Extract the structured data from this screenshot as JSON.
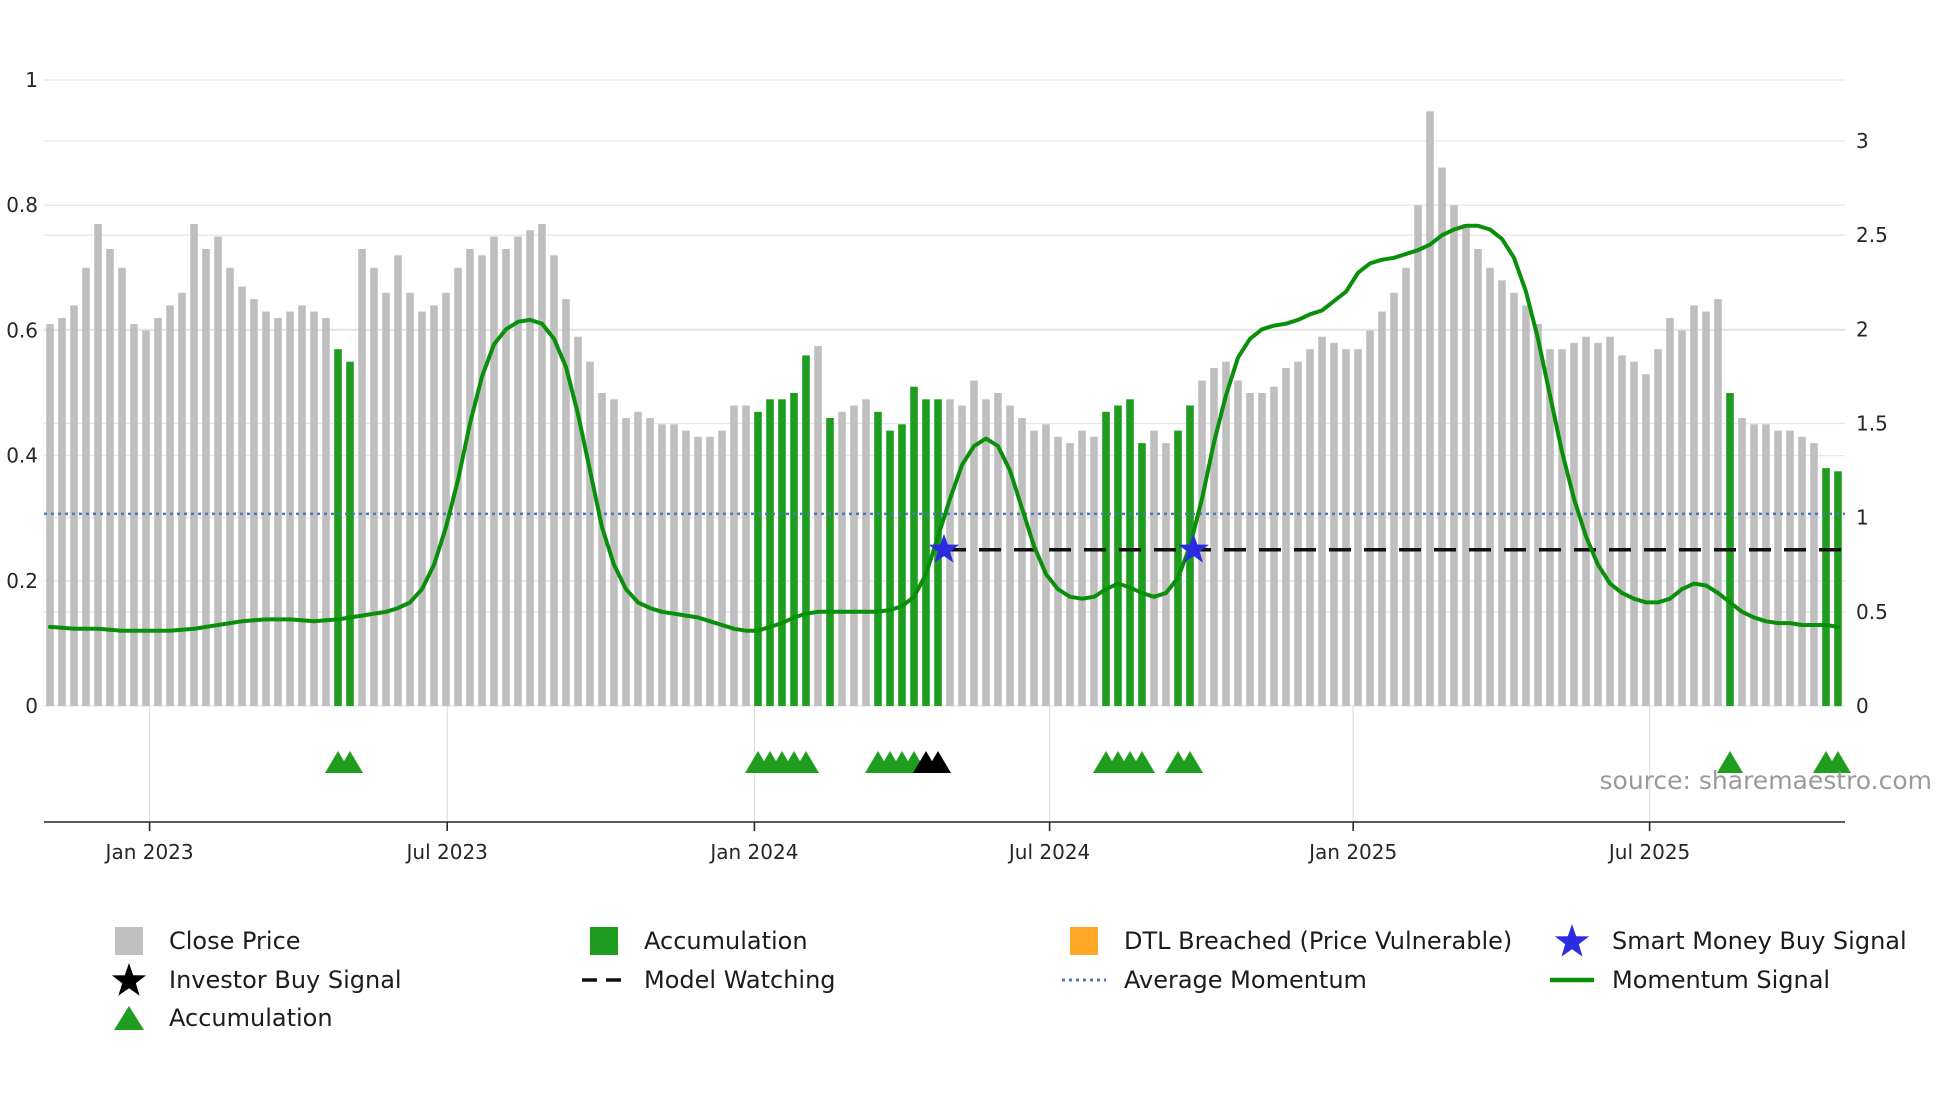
{
  "source_text": "source: sharemaestro.com",
  "colors": {
    "close_price": "#bfbfbf",
    "accumulation": "#1f9d1f",
    "momentum_signal": "#0a8f0a",
    "average_momentum": "#4e79b8",
    "model_watching": "#111111",
    "smart_money": "#2b2be0",
    "investor_buy": "#000000",
    "dtl_breached": "#ffa726",
    "axis_text": "#262626",
    "gridline": "#e7e7e7"
  },
  "chart_data": {
    "type": "bar",
    "title": "",
    "xlabel": "",
    "ylabel_left": "",
    "ylabel_right": "",
    "grid": true,
    "legend_position": "bottom",
    "x_ticks": [
      {
        "label": "Jan 2023",
        "index": 8.3
      },
      {
        "label": "Jul 2023",
        "index": 33.1
      },
      {
        "label": "Jan 2024",
        "index": 58.7
      },
      {
        "label": "Jul 2024",
        "index": 83.3
      },
      {
        "label": "Jan 2025",
        "index": 108.6
      },
      {
        "label": "Jul 2025",
        "index": 133.3
      }
    ],
    "left_axis": {
      "labels": [
        "0",
        "0.2",
        "0.4",
        "0.6",
        "0.8",
        "1"
      ],
      "values": [
        0,
        0.2,
        0.4,
        0.6,
        0.8,
        1
      ],
      "range": [
        0,
        1.03
      ]
    },
    "right_axis": {
      "labels": [
        "0",
        "0.5",
        "1",
        "1.5",
        "2",
        "2.5",
        "3"
      ],
      "values": [
        0,
        0.5,
        1,
        1.5,
        2,
        2.5,
        3
      ],
      "range": [
        0,
        3.17
      ]
    },
    "close_price": [
      0.61,
      0.62,
      0.64,
      0.7,
      0.77,
      0.73,
      0.7,
      0.61,
      0.6,
      0.62,
      0.64,
      0.66,
      0.77,
      0.73,
      0.75,
      0.7,
      0.67,
      0.65,
      0.63,
      0.62,
      0.63,
      0.64,
      0.63,
      0.62,
      0.57,
      0.55,
      0.73,
      0.7,
      0.66,
      0.72,
      0.66,
      0.63,
      0.64,
      0.66,
      0.7,
      0.73,
      0.72,
      0.75,
      0.73,
      0.75,
      0.76,
      0.77,
      0.72,
      0.65,
      0.59,
      0.55,
      0.5,
      0.49,
      0.46,
      0.47,
      0.46,
      0.45,
      0.45,
      0.44,
      0.43,
      0.43,
      0.44,
      0.48,
      0.48,
      0.47,
      0.49,
      0.49,
      0.5,
      0.56,
      0.575,
      0.46,
      0.47,
      0.48,
      0.49,
      0.47,
      0.44,
      0.45,
      0.51,
      0.49,
      0.49,
      0.49,
      0.48,
      0.52,
      0.49,
      0.5,
      0.48,
      0.46,
      0.44,
      0.45,
      0.43,
      0.42,
      0.44,
      0.43,
      0.47,
      0.48,
      0.49,
      0.42,
      0.44,
      0.42,
      0.44,
      0.48,
      0.52,
      0.54,
      0.55,
      0.52,
      0.5,
      0.5,
      0.51,
      0.54,
      0.55,
      0.57,
      0.59,
      0.58,
      0.57,
      0.57,
      0.6,
      0.63,
      0.66,
      0.7,
      0.8,
      0.95,
      0.86,
      0.8,
      0.77,
      0.73,
      0.7,
      0.68,
      0.66,
      0.64,
      0.61,
      0.57,
      0.57,
      0.58,
      0.59,
      0.58,
      0.59,
      0.56,
      0.55,
      0.53,
      0.57,
      0.62,
      0.6,
      0.64,
      0.63,
      0.65,
      0.5,
      0.46,
      0.45,
      0.45,
      0.44,
      0.44,
      0.43,
      0.42,
      0.38,
      0.375
    ],
    "accumulation_bar_indices": [
      24,
      25,
      59,
      60,
      61,
      62,
      63,
      65,
      69,
      70,
      71,
      72,
      73,
      74,
      88,
      89,
      90,
      91,
      94,
      95,
      140,
      148,
      149
    ],
    "momentum_signal": [
      0.42,
      0.415,
      0.41,
      0.41,
      0.41,
      0.405,
      0.4,
      0.4,
      0.4,
      0.4,
      0.4,
      0.405,
      0.41,
      0.42,
      0.43,
      0.44,
      0.45,
      0.455,
      0.46,
      0.46,
      0.46,
      0.455,
      0.45,
      0.455,
      0.46,
      0.47,
      0.48,
      0.49,
      0.5,
      0.52,
      0.55,
      0.62,
      0.75,
      0.95,
      1.2,
      1.5,
      1.75,
      1.92,
      2.0,
      2.04,
      2.05,
      2.03,
      1.95,
      1.8,
      1.55,
      1.25,
      0.95,
      0.75,
      0.62,
      0.55,
      0.52,
      0.5,
      0.49,
      0.48,
      0.47,
      0.45,
      0.43,
      0.41,
      0.4,
      0.4,
      0.42,
      0.44,
      0.47,
      0.49,
      0.5,
      0.5,
      0.5,
      0.5,
      0.5,
      0.5,
      0.51,
      0.53,
      0.58,
      0.7,
      0.9,
      1.1,
      1.28,
      1.38,
      1.42,
      1.38,
      1.25,
      1.05,
      0.85,
      0.7,
      0.62,
      0.58,
      0.57,
      0.58,
      0.62,
      0.65,
      0.63,
      0.6,
      0.58,
      0.6,
      0.68,
      0.85,
      1.1,
      1.4,
      1.65,
      1.85,
      1.95,
      2.0,
      2.02,
      2.03,
      2.05,
      2.08,
      2.1,
      2.15,
      2.2,
      2.3,
      2.35,
      2.37,
      2.38,
      2.4,
      2.42,
      2.45,
      2.5,
      2.53,
      2.55,
      2.55,
      2.53,
      2.48,
      2.38,
      2.2,
      1.95,
      1.65,
      1.35,
      1.1,
      0.9,
      0.75,
      0.65,
      0.6,
      0.57,
      0.55,
      0.55,
      0.57,
      0.62,
      0.65,
      0.64,
      0.6,
      0.55,
      0.5,
      0.47,
      0.45,
      0.44,
      0.44,
      0.43,
      0.43,
      0.43,
      0.42
    ],
    "average_momentum": 1.02,
    "model_watching": {
      "value": 0.83,
      "start_index": 74.5
    },
    "smart_money_buy_signals": [
      {
        "index": 74.5,
        "value": 0.83
      },
      {
        "index": 95.3,
        "value": 0.83
      }
    ],
    "accumulation_triangle_indices": [
      24,
      25,
      59,
      60,
      61,
      62,
      63,
      69,
      70,
      71,
      72,
      88,
      89,
      90,
      91,
      94,
      95,
      140,
      148,
      149
    ],
    "investor_buy_triangle_indices": [
      73,
      74
    ]
  },
  "legend": {
    "items": [
      {
        "label": "Close Price",
        "symbol": "square",
        "color": "#bfbfbf"
      },
      {
        "label": "Accumulation",
        "symbol": "square",
        "color": "#1f9d1f"
      },
      {
        "label": "DTL Breached (Price Vulnerable)",
        "symbol": "square",
        "color": "#ffa726"
      },
      {
        "label": "Smart Money Buy Signal",
        "symbol": "star",
        "color": "#2b2be0"
      },
      {
        "label": "Investor Buy Signal",
        "symbol": "star",
        "color": "#000000"
      },
      {
        "label": "Model Watching",
        "symbol": "dashed-line",
        "color": "#111111"
      },
      {
        "label": "Average Momentum",
        "symbol": "dotted-line",
        "color": "#4e79b8"
      },
      {
        "label": "Momentum Signal",
        "symbol": "line",
        "color": "#0a8f0a"
      },
      {
        "label": "Accumulation",
        "symbol": "triangle",
        "color": "#1f9d1f"
      }
    ]
  }
}
